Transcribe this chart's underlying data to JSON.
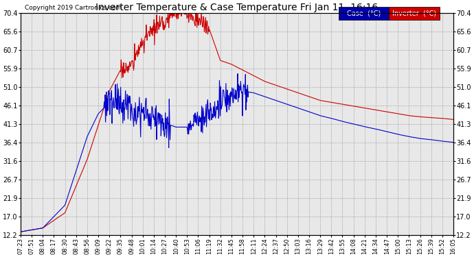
{
  "title": "Inverter Temperature & Case Temperature Fri Jan 11  16:16",
  "copyright": "Copyright 2019 Cartronics.com",
  "legend_case_label": "Case  (°C)",
  "legend_inverter_label": "Inverter  (°C)",
  "case_color": "#0000cc",
  "inverter_color": "#cc0000",
  "legend_case_bg": "#0000aa",
  "legend_inverter_bg": "#cc0000",
  "yticks": [
    12.2,
    17.0,
    21.9,
    26.7,
    31.6,
    36.4,
    41.3,
    46.1,
    51.0,
    55.9,
    60.7,
    65.6,
    70.4
  ],
  "ymin": 12.2,
  "ymax": 70.4,
  "background_color": "#ffffff",
  "plot_bg_color": "#e8e8e8",
  "grid_color": "#aaaaaa",
  "x_tick_labels": [
    "07:23",
    "07:51",
    "08:04",
    "08:17",
    "08:30",
    "08:43",
    "08:56",
    "09:09",
    "09:22",
    "09:35",
    "09:48",
    "10:01",
    "10:14",
    "10:27",
    "10:40",
    "10:53",
    "11:06",
    "11:19",
    "11:32",
    "11:45",
    "11:58",
    "12:11",
    "12:24",
    "12:37",
    "12:50",
    "13:03",
    "13:16",
    "13:29",
    "13:42",
    "13:55",
    "14:08",
    "14:21",
    "14:34",
    "14:47",
    "15:00",
    "15:13",
    "15:26",
    "15:39",
    "15:52",
    "16:05"
  ]
}
